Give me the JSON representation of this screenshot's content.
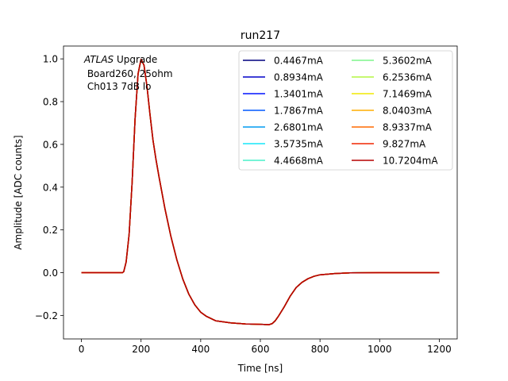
{
  "chart_data": {
    "type": "line",
    "title": "run217",
    "xlabel": "Time [ns]",
    "ylabel": "Amplitude [ADC counts]",
    "xlim": [
      -60,
      1260
    ],
    "ylim": [
      -0.31,
      1.06
    ],
    "xticks": [
      0,
      200,
      400,
      600,
      800,
      1000,
      1200
    ],
    "yticks": [
      -0.2,
      0.0,
      0.2,
      0.4,
      0.6,
      0.8,
      1.0
    ],
    "xtick_labels": [
      "0",
      "200",
      "400",
      "600",
      "800",
      "1000",
      "1200"
    ],
    "ytick_labels": [
      "−0.2",
      "0.0",
      "0.2",
      "0.4",
      "0.6",
      "0.8",
      "1.0"
    ],
    "annotation": {
      "line1_italic": "ATLAS",
      "line1_rest": " Upgrade",
      "line2": " Board260, 25ohm",
      "line3": " Ch013 7dB lo"
    },
    "legend_position": "upper right",
    "series": [
      {
        "name": "0.4467mA",
        "color": "#00007f"
      },
      {
        "name": "0.8934mA",
        "color": "#0000c8"
      },
      {
        "name": "1.3401mA",
        "color": "#0014ff"
      },
      {
        "name": "1.7867mA",
        "color": "#0058ff"
      },
      {
        "name": "2.6801mA",
        "color": "#009cf1"
      },
      {
        "name": "3.5735mA",
        "color": "#16e6f8"
      },
      {
        "name": "4.4668mA",
        "color": "#49f0c8"
      },
      {
        "name": "5.3602mA",
        "color": "#7df58c"
      },
      {
        "name": "6.2536mA",
        "color": "#b4f542"
      },
      {
        "name": "7.1469mA",
        "color": "#f0e800"
      },
      {
        "name": "8.0403mA",
        "color": "#ffae00"
      },
      {
        "name": "8.9337mA",
        "color": "#ff6a00"
      },
      {
        "name": "9.827mA",
        "color": "#f02600"
      },
      {
        "name": "10.7204mA",
        "color": "#b50000"
      }
    ],
    "waveform": {
      "x": [
        0,
        100,
        138,
        142,
        150,
        160,
        170,
        180,
        190,
        200,
        210,
        220,
        230,
        240,
        250,
        260,
        280,
        300,
        320,
        340,
        360,
        380,
        400,
        420,
        450,
        500,
        550,
        600,
        630,
        640,
        650,
        660,
        680,
        700,
        720,
        740,
        760,
        780,
        800,
        850,
        900,
        1000,
        1100,
        1200
      ],
      "y": [
        0.0,
        0.0,
        0.0,
        0.005,
        0.05,
        0.18,
        0.42,
        0.72,
        0.93,
        0.998,
        0.97,
        0.87,
        0.74,
        0.62,
        0.53,
        0.45,
        0.3,
        0.17,
        0.06,
        -0.03,
        -0.1,
        -0.15,
        -0.185,
        -0.205,
        -0.225,
        -0.235,
        -0.24,
        -0.242,
        -0.243,
        -0.238,
        -0.225,
        -0.205,
        -0.16,
        -0.11,
        -0.07,
        -0.045,
        -0.028,
        -0.017,
        -0.01,
        -0.004,
        -0.001,
        0.0,
        0.0,
        0.0
      ]
    }
  }
}
